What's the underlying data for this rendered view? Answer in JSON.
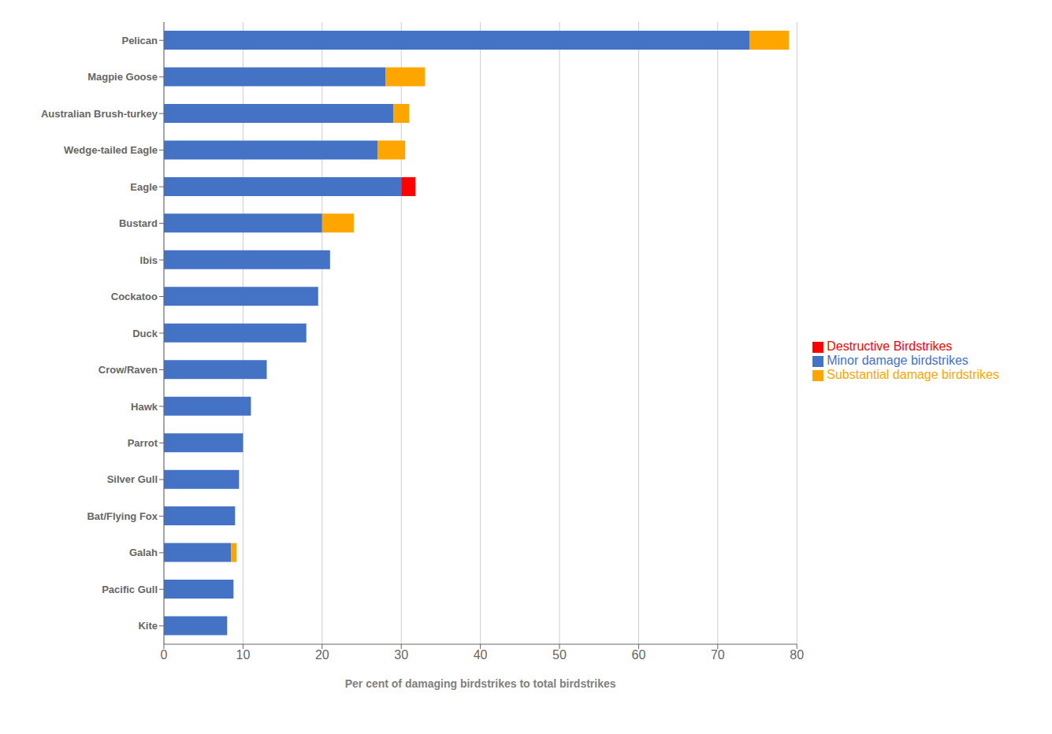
{
  "chart_data": {
    "type": "bar",
    "orientation": "horizontal",
    "stacked": true,
    "categories": [
      "Kite",
      "Pacific Gull",
      "Galah",
      "Bat/Flying Fox",
      "Silver Gull",
      "Parrot",
      "Hawk",
      "Crow/Raven",
      "Duck",
      "Cockatoo",
      "Ibis",
      "Bustard",
      "Eagle",
      "Wedge-tailed Eagle",
      "Australian Brush-turkey",
      "Magpie Goose",
      "Pelican"
    ],
    "series": [
      {
        "name": "Minor damage birdstrikes",
        "color": "#4472C4",
        "values": [
          8.0,
          8.8,
          8.5,
          9.0,
          9.5,
          10.0,
          11.0,
          13.0,
          18.0,
          19.5,
          21.0,
          20.0,
          30.0,
          27.0,
          29.0,
          28.0,
          74.0
        ]
      },
      {
        "name": "Substantial damage birdstrikes",
        "color": "#FFA500",
        "values": [
          0,
          0,
          0.7,
          0,
          0,
          0,
          0,
          0,
          0,
          0,
          0,
          4.0,
          0,
          3.5,
          2.0,
          5.0,
          5.0
        ]
      },
      {
        "name": "Destructive Birdstrikes",
        "color": "#FF0000",
        "values": [
          0,
          0,
          0,
          0,
          0,
          0,
          0,
          0,
          0,
          0,
          0,
          0,
          1.8,
          0,
          0,
          0,
          0
        ]
      }
    ],
    "xlabel": "Per cent of damaging birdstrikes to total birdstrikes",
    "xlim": [
      0,
      80
    ],
    "xticks": [
      0,
      10,
      20,
      30,
      40,
      50,
      60,
      70,
      80
    ],
    "grid": true,
    "legend": "right"
  }
}
